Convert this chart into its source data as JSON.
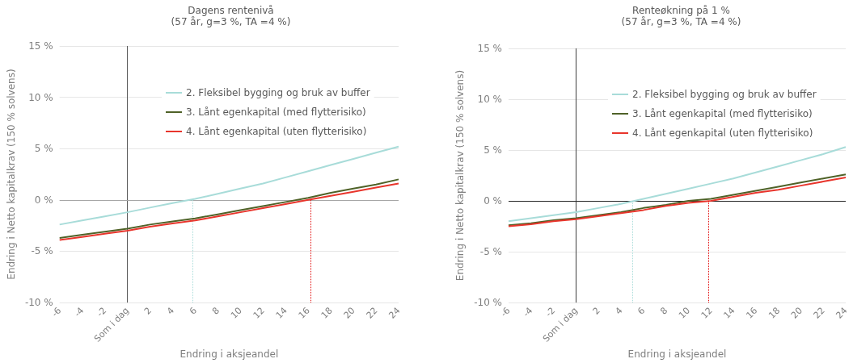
{
  "chart_data": [
    {
      "type": "line",
      "title": "Dagens rentenivå",
      "subtitle": "(57 år, g=3 %, TA =4 %)",
      "xlabel": "Endring i aksjeandel",
      "ylabel": "Endring i Netto kapitalkrav (150 % solvens)",
      "x": [
        -6,
        -4,
        -2,
        0,
        2,
        4,
        6,
        8,
        10,
        12,
        14,
        16,
        18,
        20,
        22,
        24
      ],
      "series": [
        {
          "name": "2. Fleksibel bygging og bruk av buffer",
          "color": "#a8dcd9",
          "values": [
            -2.4,
            -2.0,
            -1.6,
            -1.2,
            -0.75,
            -0.3,
            0.1,
            0.6,
            1.1,
            1.6,
            2.2,
            2.8,
            3.4,
            4.0,
            4.6,
            5.2
          ]
        },
        {
          "name": "3. Lånt egenkapital (med flytterisiko)",
          "color": "#4f6228",
          "values": [
            -3.7,
            -3.4,
            -3.1,
            -2.8,
            -2.4,
            -2.1,
            -1.8,
            -1.4,
            -1.0,
            -0.6,
            -0.2,
            0.2,
            0.7,
            1.1,
            1.5,
            2.0
          ]
        },
        {
          "name": "4. Lånt egenkapital (uten flytterisiko)",
          "color": "#e8352c",
          "values": [
            -3.9,
            -3.6,
            -3.3,
            -3.0,
            -2.6,
            -2.3,
            -2.0,
            -1.6,
            -1.2,
            -0.8,
            -0.4,
            0.0,
            0.4,
            0.8,
            1.2,
            1.6
          ]
        }
      ],
      "xlim": [
        -6,
        24
      ],
      "xticks": [
        -6,
        -4,
        -2,
        {
          "value": 0,
          "label": "Som i dag"
        },
        2,
        4,
        6,
        8,
        10,
        12,
        14,
        16,
        18,
        20,
        22,
        24
      ],
      "ylim": [
        -10,
        15
      ],
      "yticks": [
        {
          "value": -10,
          "label": "-10 %"
        },
        {
          "value": -5,
          "label": "-5 %"
        },
        {
          "value": 0,
          "label": "0 %"
        },
        {
          "value": 5,
          "label": "5 %"
        },
        {
          "value": 10,
          "label": "10 %"
        },
        {
          "value": 15,
          "label": "15 %"
        }
      ],
      "ref_lines": [
        {
          "axis": "x",
          "value": 0,
          "color": "#595959"
        },
        {
          "axis": "y",
          "value": 0,
          "color": "#a6a6a6"
        },
        {
          "axis": "x",
          "value": 5.8,
          "color": "#a8dcd9",
          "line_style": "dotted"
        },
        {
          "axis": "x",
          "value": 16.2,
          "color": "#e00000",
          "line_style": "dotted"
        }
      ],
      "grid": "y",
      "legend": "top right",
      "marker": "none",
      "line_style": "solid"
    },
    {
      "type": "line",
      "title": "Renteøkning på 1 %",
      "subtitle": "(57 år, g=3 %, TA =4 %)",
      "xlabel": "Endring i aksjeandel",
      "ylabel": "Endring i Netto kapitalkrav (150 % solvens)",
      "x": [
        -6,
        -4,
        -2,
        0,
        2,
        4,
        6,
        8,
        10,
        12,
        14,
        16,
        18,
        20,
        22,
        24
      ],
      "series": [
        {
          "name": "2. Fleksibel bygging og bruk av buffer",
          "color": "#a8dcd9",
          "values": [
            -2.0,
            -1.7,
            -1.4,
            -1.1,
            -0.7,
            -0.3,
            0.2,
            0.7,
            1.2,
            1.7,
            2.2,
            2.8,
            3.4,
            4.0,
            4.6,
            5.3
          ]
        },
        {
          "name": "3. Lånt egenkapital (med flytterisiko)",
          "color": "#4f6228",
          "values": [
            -2.4,
            -2.2,
            -1.9,
            -1.7,
            -1.4,
            -1.1,
            -0.7,
            -0.4,
            0.0,
            0.2,
            0.6,
            1.0,
            1.4,
            1.8,
            2.2,
            2.6
          ]
        },
        {
          "name": "4. Lånt egenkapital (uten flytterisiko)",
          "color": "#e8352c",
          "values": [
            -2.5,
            -2.3,
            -2.0,
            -1.8,
            -1.5,
            -1.2,
            -0.9,
            -0.5,
            -0.2,
            0.0,
            0.4,
            0.8,
            1.1,
            1.5,
            1.9,
            2.3
          ]
        }
      ],
      "xlim": [
        -6,
        24
      ],
      "xticks": [
        -6,
        -4,
        -2,
        {
          "value": 0,
          "label": "Som i dag"
        },
        2,
        4,
        6,
        8,
        10,
        12,
        14,
        16,
        18,
        20,
        22,
        24
      ],
      "ylim": [
        -10,
        15
      ],
      "yticks": [
        {
          "value": -10,
          "label": "-10 %"
        },
        {
          "value": -5,
          "label": "-5 %"
        },
        {
          "value": 0,
          "label": "0 %"
        },
        {
          "value": 5,
          "label": "5 %"
        },
        {
          "value": 10,
          "label": "10 %"
        },
        {
          "value": 15,
          "label": "15 %"
        }
      ],
      "ref_lines": [
        {
          "axis": "x",
          "value": 0,
          "color": "#404040"
        },
        {
          "axis": "y",
          "value": 0,
          "color": "#262626"
        },
        {
          "axis": "x",
          "value": 5.0,
          "color": "#a8dcd9",
          "line_style": "dotted"
        },
        {
          "axis": "x",
          "value": 11.8,
          "color": "#e00000",
          "line_style": "dotted"
        }
      ],
      "grid": "y",
      "legend": "top right",
      "marker": "none",
      "line_style": "solid"
    }
  ]
}
